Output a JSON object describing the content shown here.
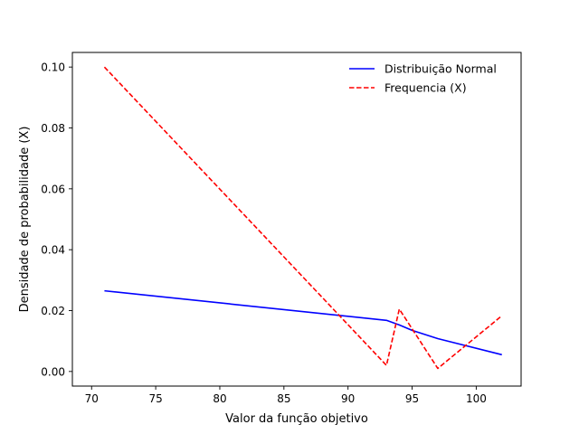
{
  "chart_data": {
    "type": "line",
    "title": "",
    "xlabel": "Valor da função objetivo",
    "ylabel": "Densidade de probabilidade (X)",
    "xlim": [
      68.5,
      103.5
    ],
    "ylim": [
      -0.0048,
      0.1048
    ],
    "xticks": [
      70,
      75,
      80,
      85,
      90,
      95,
      100
    ],
    "yticks": [
      0.0,
      0.02,
      0.04,
      0.06,
      0.08,
      0.1
    ],
    "xtick_labels": [
      "70",
      "75",
      "80",
      "85",
      "90",
      "95",
      "100"
    ],
    "ytick_labels": [
      "0.00",
      "0.02",
      "0.04",
      "0.06",
      "0.08",
      "0.10"
    ],
    "grid": false,
    "legend_position": "top-right",
    "series": [
      {
        "name": "Distribuição Normal",
        "color": "#0000ff",
        "style": "solid",
        "x": [
          71,
          93,
          94,
          95,
          97,
          102
        ],
        "y": [
          0.0265,
          0.0168,
          0.0153,
          0.0135,
          0.0108,
          0.0055
        ]
      },
      {
        "name": "Frequencia (X)",
        "color": "#ff0000",
        "style": "dashed",
        "x": [
          71,
          93,
          94,
          97,
          102
        ],
        "y": [
          0.1,
          0.002,
          0.0205,
          0.001,
          0.0183
        ]
      }
    ]
  }
}
